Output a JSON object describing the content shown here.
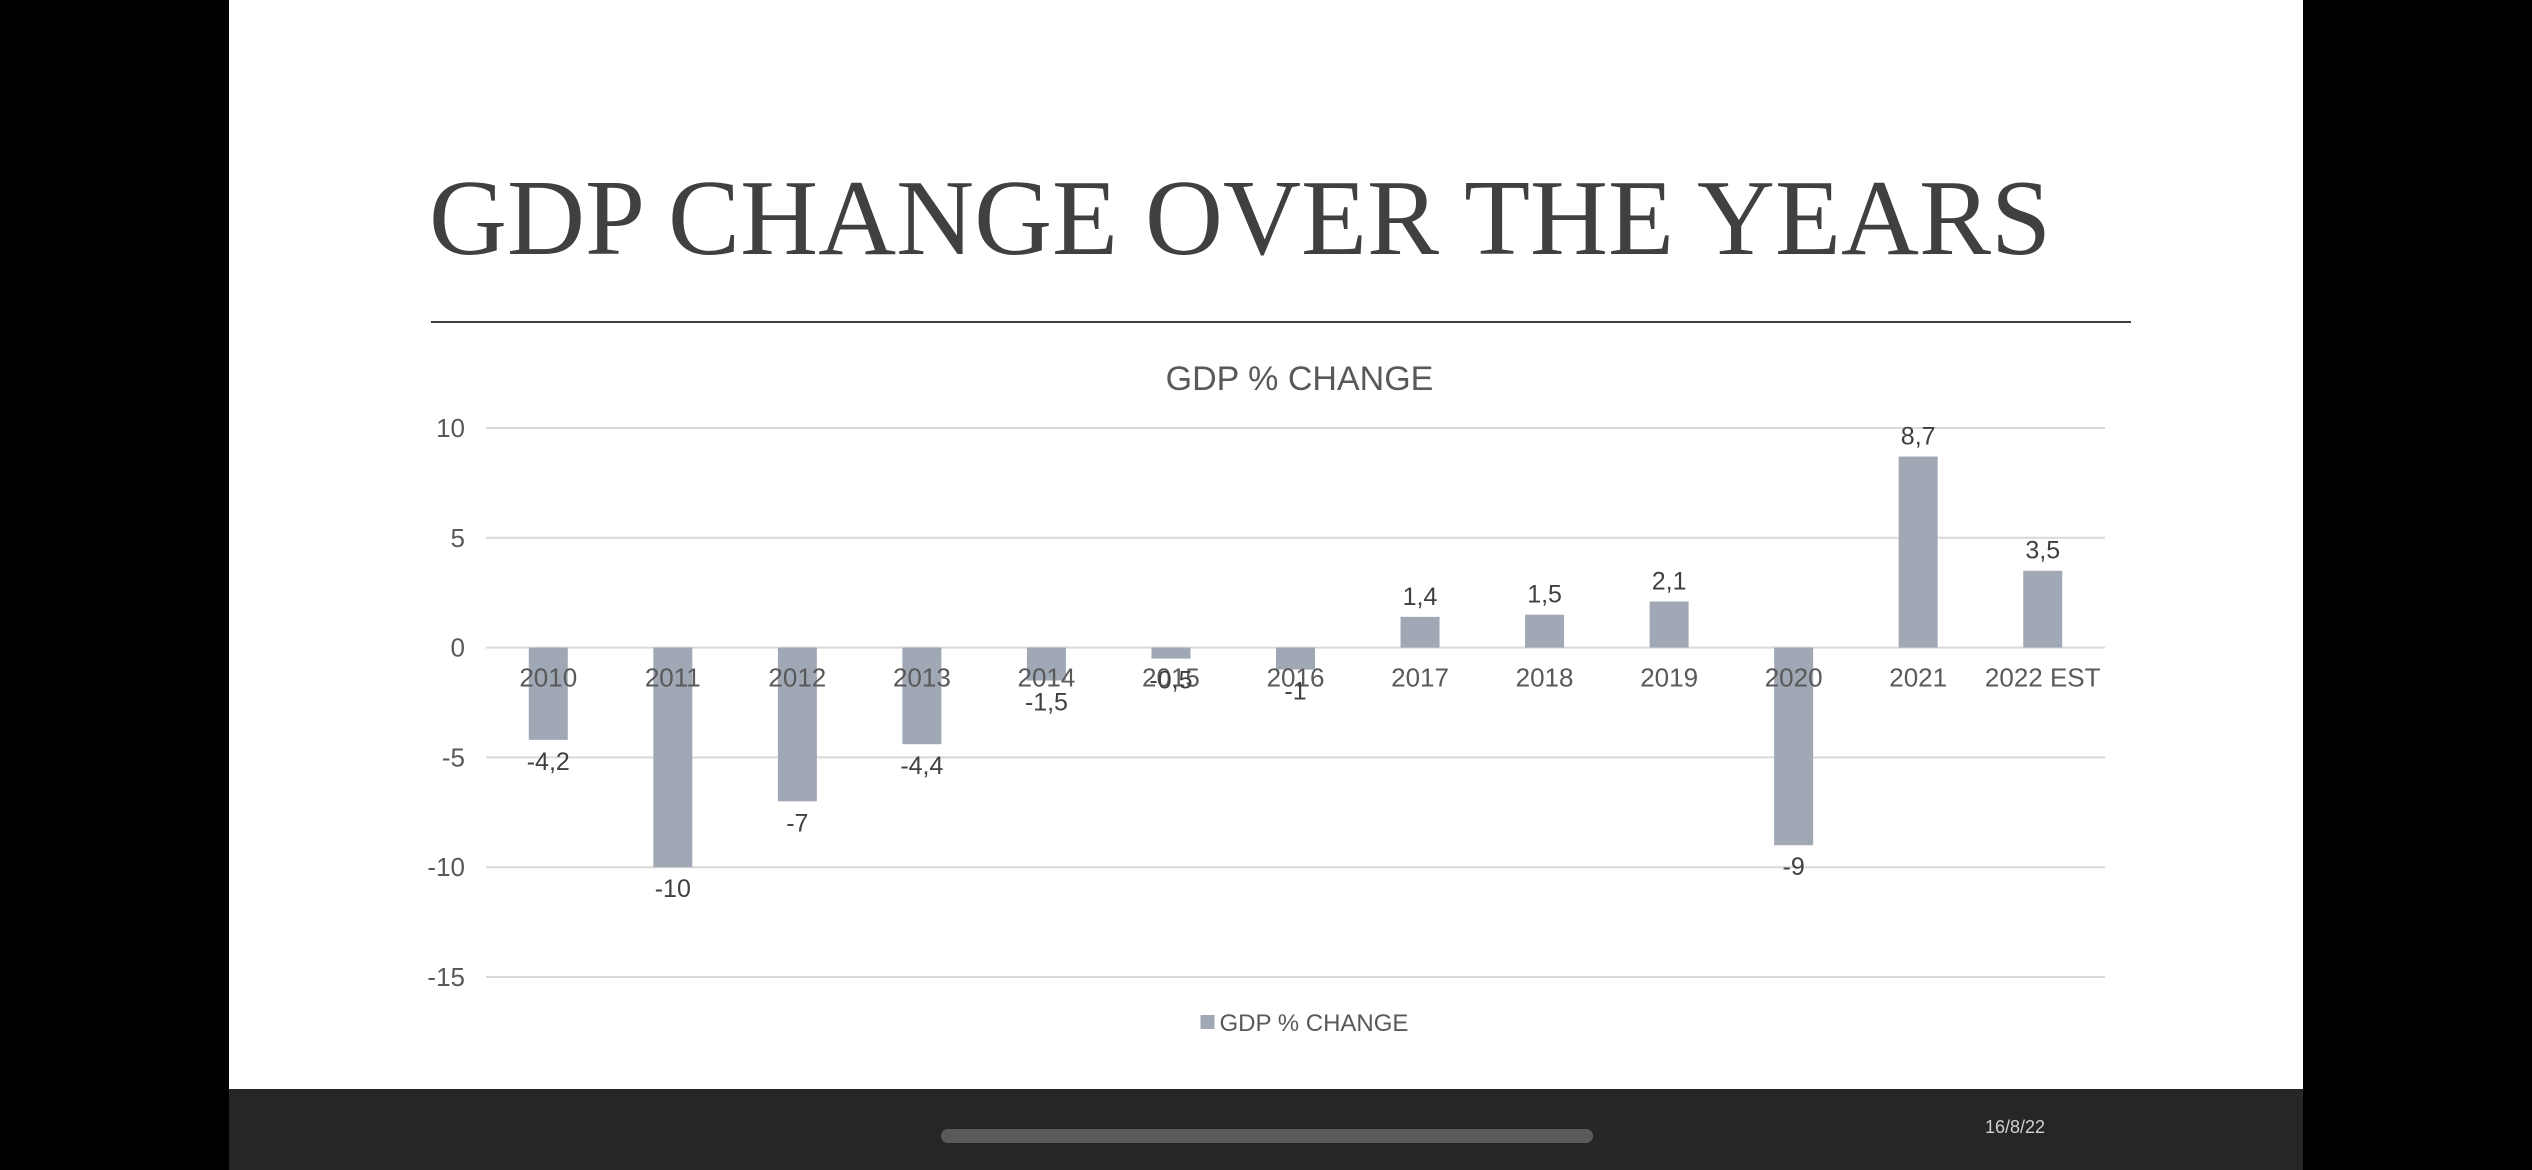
{
  "slide": {
    "title": "GDP CHANGE OVER THE YEARS",
    "footer_date": "16/8/22"
  },
  "chart_data": {
    "type": "bar",
    "title": "GDP % CHANGE",
    "xlabel": "",
    "ylabel": "",
    "categories": [
      "2010",
      "2011",
      "2012",
      "2013",
      "2014",
      "2015",
      "2016",
      "2017",
      "2018",
      "2019",
      "2020",
      "2021",
      "2022 EST"
    ],
    "series": [
      {
        "name": "GDP % CHANGE",
        "values": [
          -4.2,
          -10,
          -7,
          -4.4,
          -1.5,
          -0.5,
          -1,
          1.4,
          1.5,
          2.1,
          -9,
          8.7,
          3.5
        ]
      }
    ],
    "data_labels": [
      "-4,2",
      "-10",
      "-7",
      "-4,4",
      "-1,5",
      "-0,5",
      "-1",
      "1,4",
      "1,5",
      "2,1",
      "-9",
      "8,7",
      "3,5"
    ],
    "ylim": [
      -15,
      10
    ],
    "yticks": [
      10,
      5,
      0,
      -5,
      -10,
      -15
    ],
    "grid": true,
    "legend": "bottom",
    "bar_color": "#a0a8b5"
  }
}
